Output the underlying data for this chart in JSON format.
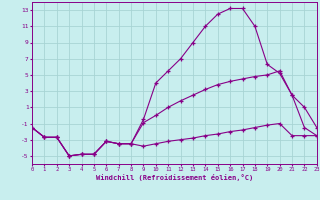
{
  "background_color": "#c8eeee",
  "grid_color": "#a8d4d4",
  "line_color": "#880088",
  "xlabel": "Windchill (Refroidissement éolien,°C)",
  "x": [
    0,
    1,
    2,
    3,
    4,
    5,
    6,
    7,
    8,
    9,
    10,
    11,
    12,
    13,
    14,
    15,
    16,
    17,
    18,
    19,
    20,
    21,
    22,
    23
  ],
  "line_upper": [
    -1.5,
    -2.7,
    -2.7,
    -5.0,
    -4.8,
    -4.8,
    -3.2,
    -3.5,
    -3.5,
    -0.5,
    4.0,
    5.5,
    7.0,
    9.0,
    11.0,
    12.5,
    13.2,
    13.2,
    11.0,
    6.3,
    5.2,
    2.5,
    1.0,
    -1.5
  ],
  "line_mid": [
    -1.5,
    -2.7,
    -2.7,
    -5.0,
    -4.8,
    -4.8,
    -3.2,
    -3.5,
    -3.5,
    -0.9,
    0.0,
    1.0,
    1.8,
    2.5,
    3.2,
    3.8,
    4.2,
    4.5,
    4.8,
    5.0,
    5.5,
    2.5,
    -1.5,
    -2.5
  ],
  "line_lower": [
    -1.5,
    -2.7,
    -2.7,
    -5.0,
    -4.8,
    -4.8,
    -3.2,
    -3.5,
    -3.5,
    -3.8,
    -3.5,
    -3.2,
    -3.0,
    -2.8,
    -2.5,
    -2.3,
    -2.0,
    -1.8,
    -1.5,
    -1.2,
    -1.0,
    -2.5,
    -2.5,
    -2.5
  ],
  "ylim": [
    -6,
    14
  ],
  "yticks": [
    -5,
    -3,
    -1,
    1,
    3,
    5,
    7,
    9,
    11,
    13
  ],
  "xlim": [
    0,
    23
  ],
  "xticks": [
    0,
    1,
    2,
    3,
    4,
    5,
    6,
    7,
    8,
    9,
    10,
    11,
    12,
    13,
    14,
    15,
    16,
    17,
    18,
    19,
    20,
    21,
    22,
    23
  ]
}
